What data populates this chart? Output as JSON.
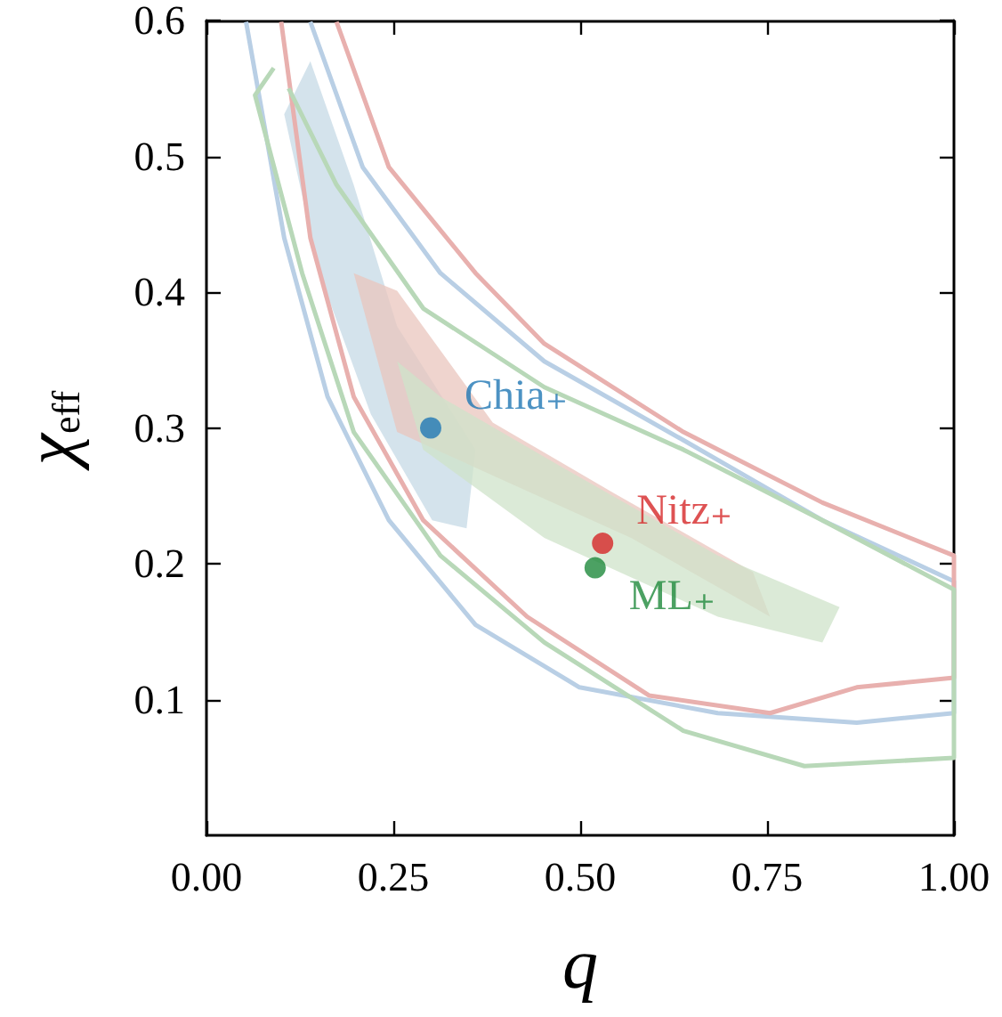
{
  "chart_data": {
    "type": "scatter",
    "xlabel": "q",
    "ylabel": "χ$_{eff}$",
    "xlim": [
      0,
      1
    ],
    "xticks": [
      {
        "value": 0,
        "label": "0.00"
      },
      {
        "value": 0.25,
        "label": "0.25"
      },
      {
        "value": 0.5,
        "label": "0.50"
      },
      {
        "value": 0.75,
        "label": "0.75"
      },
      {
        "value": 1,
        "label": "1.00"
      }
    ],
    "ylim": [
      0,
      0.6
    ],
    "yticks": [
      0.1,
      0.2,
      0.3,
      0.4,
      0.5,
      0.6
    ],
    "grid": false,
    "legend": false,
    "series": [
      {
        "type": "area",
        "color": "#c5d9e6",
        "x": [
          0.104,
          0.151,
          0.22,
          0.302,
          0.348,
          0.36,
          0.255,
          0.197,
          0.139,
          0.104
        ],
        "values": [
          0.531,
          0.414,
          0.31,
          0.232,
          0.226,
          0.284,
          0.375,
          0.479,
          0.57,
          0.531
        ]
      },
      {
        "type": "area",
        "color": "#e9c6bd",
        "x": [
          0.197,
          0.255,
          0.383,
          0.568,
          0.754,
          0.731,
          0.545,
          0.383,
          0.255,
          0.197
        ],
        "values": [
          0.414,
          0.297,
          0.265,
          0.219,
          0.161,
          0.194,
          0.252,
          0.304,
          0.401,
          0.414
        ]
      },
      {
        "type": "area",
        "color": "#cfe3c9",
        "x": [
          0.255,
          0.29,
          0.452,
          0.684,
          0.824,
          0.847,
          0.684,
          0.476,
          0.313,
          0.255
        ],
        "values": [
          0.349,
          0.284,
          0.219,
          0.161,
          0.142,
          0.168,
          0.206,
          0.271,
          0.323,
          0.349
        ]
      },
      {
        "type": "line",
        "color": "#b9cfe5",
        "x": [
          0.053,
          0.104,
          0.162,
          0.244,
          0.36,
          0.499,
          0.684,
          0.87,
          1.0,
          1.0,
          0.824,
          0.638,
          0.452,
          0.313,
          0.209,
          0.139
        ],
        "values": [
          0.599,
          0.44,
          0.323,
          0.232,
          0.155,
          0.109,
          0.09,
          0.083,
          0.09,
          0.187,
          0.232,
          0.291,
          0.349,
          0.414,
          0.492,
          0.599
        ]
      },
      {
        "type": "line",
        "color": "#e8b0ae",
        "x": [
          0.1,
          0.139,
          0.197,
          0.29,
          0.429,
          0.592,
          0.754,
          0.87,
          1.0,
          1.0,
          0.824,
          0.638,
          0.452,
          0.36,
          0.244,
          0.174
        ],
        "values": [
          0.599,
          0.44,
          0.323,
          0.232,
          0.161,
          0.103,
          0.09,
          0.109,
          0.116,
          0.206,
          0.245,
          0.297,
          0.362,
          0.414,
          0.492,
          0.599
        ]
      },
      {
        "type": "line",
        "color": "#b8d8b8",
        "x": [
          0.09,
          0.065,
          0.128,
          0.197,
          0.313,
          0.452,
          0.638,
          0.8,
          1.0,
          1.0,
          0.824,
          0.638,
          0.452,
          0.29,
          0.174,
          0.11
        ],
        "values": [
          0.565,
          0.545,
          0.414,
          0.297,
          0.206,
          0.142,
          0.077,
          0.051,
          0.057,
          0.181,
          0.232,
          0.284,
          0.33,
          0.388,
          0.479,
          0.55
        ]
      },
      {
        "name": "Chia₊",
        "color": "#1f77b4",
        "x": [
          0.3
        ],
        "values": [
          0.3
        ]
      },
      {
        "name": "Nitz₊",
        "color": "#d62728",
        "x": [
          0.53
        ],
        "values": [
          0.215
        ]
      },
      {
        "name": "ML₊",
        "color": "#1f8a3c",
        "x": [
          0.52
        ],
        "values": [
          0.197
        ]
      }
    ]
  }
}
